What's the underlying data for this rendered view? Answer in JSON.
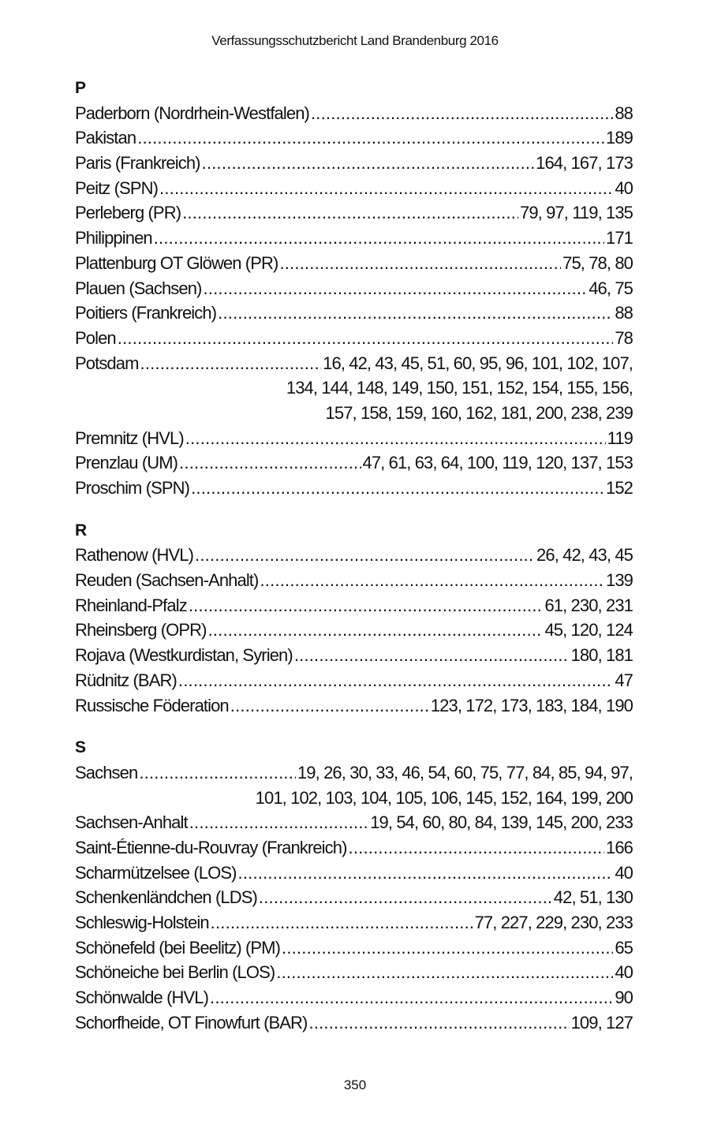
{
  "header": "Verfassungsschutzbericht Land Brandenburg 2016",
  "page_number": "350",
  "sections": [
    {
      "letter": "P",
      "entries": [
        {
          "name": "Paderborn (Nordrhein-Westfalen)",
          "pages": [
            "88"
          ]
        },
        {
          "name": "Pakistan",
          "pages": [
            "189"
          ]
        },
        {
          "name": "Paris (Frankreich)",
          "pages": [
            "164, 167, 173"
          ]
        },
        {
          "name": "Peitz (SPN)",
          "pages": [
            "40"
          ]
        },
        {
          "name": "Perleberg (PR)",
          "pages": [
            "79, 97, 119, 135"
          ]
        },
        {
          "name": "Philippinen",
          "pages": [
            "171"
          ]
        },
        {
          "name": "Plattenburg OT Glöwen (PR)",
          "pages": [
            "75, 78, 80"
          ]
        },
        {
          "name": "Plauen (Sachsen)",
          "pages": [
            "46, 75"
          ]
        },
        {
          "name": "Poitiers (Frankreich)",
          "pages": [
            "88"
          ]
        },
        {
          "name": "Polen",
          "pages": [
            "78"
          ]
        },
        {
          "name": "Potsdam",
          "pages": [
            "16, 42, 43, 45, 51, 60, 95, 96, 101, 102, 107,",
            "134, 144, 148, 149, 150, 151, 152, 154, 155, 156,",
            "157, 158, 159, 160, 162, 181, 200, 238, 239"
          ]
        },
        {
          "name": "Premnitz (HVL)",
          "pages": [
            "119"
          ]
        },
        {
          "name": "Prenzlau (UM)",
          "pages": [
            "47, 61, 63, 64, 100, 119, 120, 137, 153"
          ]
        },
        {
          "name": "Proschim (SPN)",
          "pages": [
            "152"
          ]
        }
      ]
    },
    {
      "letter": "R",
      "entries": [
        {
          "name": "Rathenow (HVL)",
          "pages": [
            "26, 42, 43, 45"
          ]
        },
        {
          "name": "Reuden (Sachsen-Anhalt)",
          "pages": [
            "139"
          ]
        },
        {
          "name": "Rheinland-Pfalz",
          "pages": [
            "61, 230, 231"
          ]
        },
        {
          "name": "Rheinsberg (OPR)",
          "pages": [
            "45, 120, 124"
          ]
        },
        {
          "name": "Rojava (Westkurdistan, Syrien)",
          "pages": [
            "180, 181"
          ]
        },
        {
          "name": "Rüdnitz (BAR)",
          "pages": [
            "47"
          ]
        },
        {
          "name": "Russische Föderation",
          "pages": [
            "123, 172, 173, 183, 184, 190"
          ]
        }
      ]
    },
    {
      "letter": "S",
      "entries": [
        {
          "name": "Sachsen",
          "pages": [
            "19, 26, 30, 33, 46, 54, 60, 75, 77, 84, 85, 94, 97,",
            "101, 102, 103, 104, 105, 106, 145, 152, 164, 199, 200"
          ]
        },
        {
          "name": "Sachsen-Anhalt",
          "pages": [
            "19, 54, 60, 80, 84, 139, 145, 200, 233"
          ]
        },
        {
          "name": "Saint-Étienne-du-Rouvray (Frankreich)",
          "pages": [
            "166"
          ]
        },
        {
          "name": "Scharmützelsee (LOS)",
          "pages": [
            "40"
          ]
        },
        {
          "name": "Schenkenländchen (LDS)",
          "pages": [
            "42, 51, 130"
          ]
        },
        {
          "name": "Schleswig-Holstein",
          "pages": [
            "77, 227, 229, 230, 233"
          ]
        },
        {
          "name": "Schönefeld (bei Beelitz) (PM)",
          "pages": [
            "65"
          ]
        },
        {
          "name": "Schöneiche bei Berlin (LOS)",
          "pages": [
            "40"
          ]
        },
        {
          "name": "Schönwalde (HVL)",
          "pages": [
            "90"
          ]
        },
        {
          "name": "Schorfheide, OT Finowfurt (BAR)",
          "pages": [
            "109, 127"
          ]
        }
      ]
    }
  ]
}
